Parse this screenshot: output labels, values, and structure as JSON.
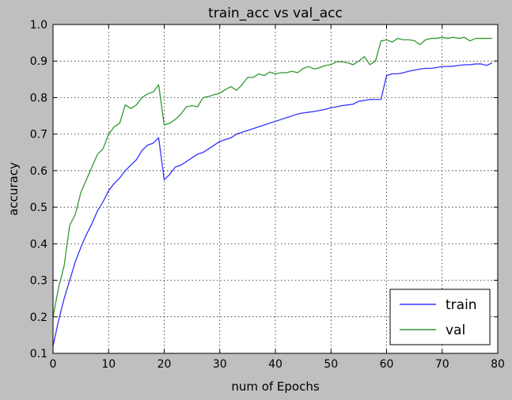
{
  "chart_data": {
    "type": "line",
    "title": "train_acc vs val_acc",
    "xlabel": "num of Epochs",
    "ylabel": "accuracy",
    "xlim": [
      0,
      80
    ],
    "ylim": [
      0.1,
      1.0
    ],
    "xticks": [
      0,
      10,
      20,
      30,
      40,
      50,
      60,
      70,
      80
    ],
    "yticks": [
      0.1,
      0.2,
      0.3,
      0.4,
      0.5,
      0.6,
      0.7,
      0.8,
      0.9,
      1.0
    ],
    "xtick_labels": [
      "0",
      "10",
      "20",
      "30",
      "40",
      "50",
      "60",
      "70",
      "80"
    ],
    "ytick_labels": [
      "0.1",
      "0.2",
      "0.3",
      "0.4",
      "0.5",
      "0.6",
      "0.7",
      "0.8",
      "0.9",
      "1.0"
    ],
    "grid": true,
    "legend_position": "bottom-right",
    "series": [
      {
        "name": "train",
        "color": "#3333ff",
        "x": [
          0,
          1,
          2,
          3,
          4,
          5,
          6,
          7,
          8,
          9,
          10,
          11,
          12,
          13,
          14,
          15,
          16,
          17,
          18,
          19,
          20,
          21,
          22,
          23,
          24,
          25,
          26,
          27,
          28,
          29,
          30,
          31,
          32,
          33,
          34,
          35,
          36,
          37,
          38,
          39,
          40,
          41,
          42,
          43,
          44,
          45,
          46,
          47,
          48,
          49,
          50,
          51,
          52,
          53,
          54,
          55,
          56,
          57,
          58,
          59,
          60,
          61,
          62,
          63,
          64,
          65,
          66,
          67,
          68,
          69,
          70,
          71,
          72,
          73,
          74,
          75,
          76,
          77,
          78,
          79
        ],
        "values": [
          0.12,
          0.19,
          0.25,
          0.3,
          0.35,
          0.39,
          0.425,
          0.455,
          0.49,
          0.515,
          0.545,
          0.565,
          0.58,
          0.6,
          0.615,
          0.63,
          0.655,
          0.67,
          0.675,
          0.69,
          0.575,
          0.59,
          0.61,
          0.615,
          0.625,
          0.635,
          0.645,
          0.65,
          0.66,
          0.67,
          0.68,
          0.685,
          0.69,
          0.7,
          0.705,
          0.71,
          0.715,
          0.72,
          0.725,
          0.73,
          0.735,
          0.74,
          0.745,
          0.75,
          0.755,
          0.758,
          0.76,
          0.762,
          0.765,
          0.768,
          0.772,
          0.775,
          0.778,
          0.78,
          0.782,
          0.79,
          0.792,
          0.795,
          0.795,
          0.795,
          0.86,
          0.865,
          0.865,
          0.868,
          0.872,
          0.875,
          0.878,
          0.88,
          0.88,
          0.882,
          0.885,
          0.885,
          0.886,
          0.888,
          0.89,
          0.89,
          0.892,
          0.892,
          0.888,
          0.895
        ]
      },
      {
        "name": "val",
        "color": "#339933",
        "x": [
          0,
          1,
          2,
          3,
          4,
          5,
          6,
          7,
          8,
          9,
          10,
          11,
          12,
          13,
          14,
          15,
          16,
          17,
          18,
          19,
          20,
          21,
          22,
          23,
          24,
          25,
          26,
          27,
          28,
          29,
          30,
          31,
          32,
          33,
          34,
          35,
          36,
          37,
          38,
          39,
          40,
          41,
          42,
          43,
          44,
          45,
          46,
          47,
          48,
          49,
          50,
          51,
          52,
          53,
          54,
          55,
          56,
          57,
          58,
          59,
          60,
          61,
          62,
          63,
          64,
          65,
          66,
          67,
          68,
          69,
          70,
          71,
          72,
          73,
          74,
          75,
          76,
          77,
          78,
          79
        ],
        "values": [
          0.2,
          0.28,
          0.34,
          0.45,
          0.48,
          0.54,
          0.575,
          0.61,
          0.645,
          0.66,
          0.7,
          0.72,
          0.73,
          0.78,
          0.77,
          0.78,
          0.8,
          0.81,
          0.815,
          0.835,
          0.725,
          0.73,
          0.74,
          0.755,
          0.775,
          0.778,
          0.775,
          0.8,
          0.803,
          0.808,
          0.812,
          0.822,
          0.83,
          0.82,
          0.835,
          0.855,
          0.855,
          0.865,
          0.86,
          0.87,
          0.865,
          0.868,
          0.868,
          0.872,
          0.868,
          0.88,
          0.885,
          0.878,
          0.882,
          0.888,
          0.89,
          0.898,
          0.898,
          0.895,
          0.89,
          0.9,
          0.912,
          0.89,
          0.9,
          0.955,
          0.958,
          0.952,
          0.962,
          0.958,
          0.958,
          0.956,
          0.945,
          0.958,
          0.962,
          0.962,
          0.965,
          0.962,
          0.965,
          0.962,
          0.965,
          0.955,
          0.962,
          0.962,
          0.962,
          0.962
        ]
      }
    ]
  }
}
